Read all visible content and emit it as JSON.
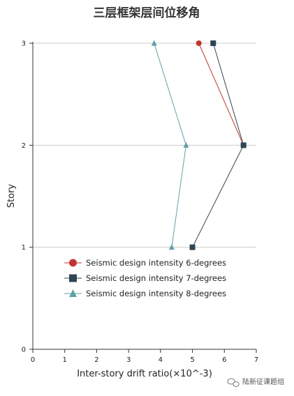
{
  "chart_data": {
    "type": "line",
    "title": "三层框架层间位移角",
    "xlabel": "Inter-story drift ratio(×10^-3)",
    "ylabel": "Story",
    "xlim": [
      0,
      7
    ],
    "ylim": [
      0,
      3
    ],
    "x_ticks": [
      "0",
      "1",
      "2",
      "3",
      "4",
      "5",
      "6",
      "7"
    ],
    "y_ticks": [
      "0",
      "1",
      "2",
      "3"
    ],
    "grid": "horizontal",
    "legend_position": "lower-left",
    "series": [
      {
        "name": "Seismic design intensity 6-degrees",
        "color": "#c23531",
        "marker": "circle",
        "points": [
          {
            "x": 6.6,
            "y": 2
          },
          {
            "x": 5.2,
            "y": 3
          }
        ]
      },
      {
        "name": "Seismic design intensity 7-degrees",
        "color": "#2f4554",
        "marker": "square",
        "points": [
          {
            "x": 5.0,
            "y": 1
          },
          {
            "x": 6.6,
            "y": 2
          },
          {
            "x": 5.65,
            "y": 3
          }
        ]
      },
      {
        "name": "Seismic design intensity 8-degrees",
        "color": "#61a0a8",
        "marker": "triangle",
        "points": [
          {
            "x": 4.35,
            "y": 1
          },
          {
            "x": 4.8,
            "y": 2
          },
          {
            "x": 3.8,
            "y": 3
          }
        ]
      }
    ]
  },
  "watermark": {
    "icon": "wechat-icon",
    "text": "陆新征课题组"
  }
}
